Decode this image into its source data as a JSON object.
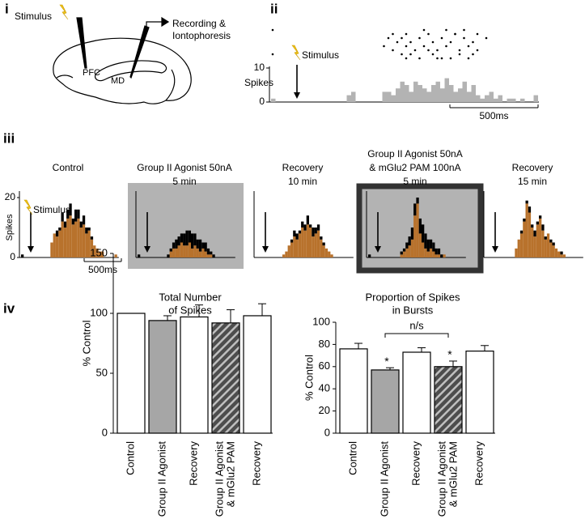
{
  "panel_labels": [
    "i",
    "ii",
    "iii",
    "iv"
  ],
  "diagram": {
    "stimulus": "Stimulus",
    "recording": [
      "Recording &",
      "Iontophoresis"
    ],
    "pfc": "PFC",
    "md": "MD"
  },
  "chart_data": [
    {
      "type": "scatter",
      "color": "#000000",
      "x": [
        0,
        0,
        26,
        27,
        28,
        29,
        30,
        30,
        31,
        32,
        33,
        34,
        35,
        36,
        37,
        38,
        39,
        40,
        41,
        42,
        43,
        44,
        45,
        46,
        27,
        29,
        31,
        33,
        36,
        38,
        40,
        42,
        44,
        46,
        48,
        39,
        41,
        43,
        30,
        34,
        37,
        45,
        25,
        35
      ],
      "y": [
        1,
        7,
        3,
        2,
        4,
        3,
        5,
        2,
        4,
        6,
        3,
        5,
        2,
        4,
        6,
        3,
        5,
        4,
        2,
        6,
        3,
        5,
        4,
        2,
        6,
        7,
        7,
        8,
        7,
        8,
        8,
        7,
        8,
        6,
        3,
        1,
        2,
        1,
        8,
        1,
        8,
        7,
        5,
        6
      ]
    },
    {
      "type": "bar",
      "ylabel": "Spikes",
      "annotation": "Stimulus",
      "scale_bar": "500ms",
      "color": "#b3b3b3",
      "ylim": [
        0,
        10
      ],
      "yticks": [
        0,
        10
      ],
      "values": [
        1,
        0,
        0,
        0,
        0,
        0,
        0,
        0,
        0,
        0,
        0,
        0,
        0,
        0,
        0,
        0,
        0,
        2,
        3,
        0,
        0,
        0,
        0,
        0,
        0,
        3,
        3,
        2,
        4,
        6,
        5,
        3,
        6,
        5,
        4,
        3,
        5,
        6,
        4,
        7,
        5,
        3,
        4,
        6,
        3,
        5,
        2,
        1,
        2,
        3,
        1,
        2,
        0,
        1,
        1,
        0,
        1,
        0,
        0,
        2
      ]
    },
    {
      "type": "stacked_bar",
      "title": [
        "Control"
      ],
      "ylabel": "Spikes",
      "annotation": "Stimulus",
      "scale_bar": "500ms",
      "ylim": [
        0,
        20
      ],
      "yticks": [
        0,
        20
      ],
      "background": "none",
      "framed": false,
      "series": [
        {
          "color": "#b8722c",
          "values": [
            0,
            0,
            0,
            0,
            0,
            0,
            0,
            0,
            0,
            0,
            0,
            5,
            8,
            7,
            9,
            12,
            10,
            13,
            14,
            11,
            12,
            13,
            10,
            11,
            8,
            9,
            6,
            4,
            3,
            2,
            2,
            0,
            0,
            0,
            0,
            1
          ]
        },
        {
          "color": "#000000",
          "values": [
            1,
            0,
            0,
            0,
            0,
            0,
            0,
            0,
            0,
            0,
            0,
            0,
            0,
            2,
            1,
            3,
            2,
            3,
            4,
            2,
            4,
            3,
            2,
            3,
            2,
            1,
            1,
            0,
            0,
            0,
            0,
            0,
            0,
            0,
            0,
            0
          ]
        }
      ]
    },
    {
      "type": "stacked_bar",
      "title": [
        "Group II Agonist 50nA",
        "5 min"
      ],
      "background": "#b3b3b3",
      "framed": false,
      "series": [
        {
          "color": "#b8722c",
          "values": [
            0,
            0,
            0,
            0,
            0,
            0,
            0,
            0,
            0,
            0,
            0,
            0,
            2,
            3,
            3,
            4,
            5,
            4,
            4,
            5,
            3,
            4,
            3,
            2,
            3,
            2,
            1,
            1,
            0,
            0,
            0,
            0,
            0,
            0,
            0,
            0
          ]
        },
        {
          "color": "#000000",
          "values": [
            1,
            0,
            0,
            0,
            0,
            0,
            0,
            0,
            0,
            0,
            0,
            1,
            1,
            2,
            3,
            3,
            3,
            4,
            5,
            4,
            5,
            4,
            3,
            4,
            2,
            3,
            2,
            1,
            1,
            0,
            0,
            0,
            0,
            0,
            0,
            0
          ]
        }
      ]
    },
    {
      "type": "stacked_bar",
      "title": [
        "Recovery",
        "10 min"
      ],
      "background": "none",
      "framed": false,
      "series": [
        {
          "color": "#b8722c",
          "values": [
            0,
            0,
            0,
            0,
            0,
            0,
            0,
            0,
            0,
            0,
            1,
            2,
            4,
            5,
            7,
            6,
            8,
            10,
            9,
            11,
            10,
            7,
            8,
            9,
            6,
            4,
            3,
            2,
            1,
            0,
            0,
            0,
            0,
            0,
            0,
            0
          ]
        },
        {
          "color": "#000000",
          "values": [
            0,
            0,
            0,
            0,
            0,
            0,
            0,
            0,
            0,
            0,
            0,
            0,
            0,
            1,
            2,
            2,
            1,
            2,
            2,
            3,
            1,
            3,
            2,
            2,
            1,
            1,
            0,
            0,
            0,
            0,
            0,
            0,
            0,
            0,
            0,
            0
          ]
        }
      ]
    },
    {
      "type": "stacked_bar",
      "title": [
        "Group II Agonist 50nA",
        "& mGlu2 PAM 100nA",
        "5 min"
      ],
      "background": "#b3b3b3",
      "framed": true,
      "series": [
        {
          "color": "#b8722c",
          "values": [
            0,
            0,
            0,
            0,
            0,
            0,
            0,
            0,
            0,
            0,
            0,
            0,
            1,
            2,
            3,
            4,
            6,
            14,
            18,
            8,
            5,
            3,
            2,
            3,
            2,
            1,
            1,
            0,
            1,
            0,
            0,
            0,
            0,
            0,
            0,
            0
          ]
        },
        {
          "color": "#000000",
          "values": [
            1,
            0,
            0,
            0,
            0,
            0,
            0,
            0,
            0,
            0,
            0,
            0,
            1,
            1,
            2,
            3,
            4,
            4,
            2,
            5,
            6,
            5,
            4,
            3,
            3,
            2,
            2,
            1,
            0,
            0,
            0,
            0,
            0,
            0,
            0,
            0
          ]
        }
      ]
    },
    {
      "type": "stacked_bar",
      "title": [
        "Recovery",
        "15 min"
      ],
      "background": "none",
      "framed": false,
      "series": [
        {
          "color": "#b8722c",
          "values": [
            0,
            0,
            0,
            0,
            0,
            0,
            0,
            0,
            0,
            0,
            0,
            3,
            6,
            8,
            12,
            18,
            15,
            10,
            7,
            11,
            13,
            9,
            6,
            8,
            5,
            4,
            3,
            2,
            1,
            1,
            0,
            0,
            0,
            0,
            0,
            0
          ]
        },
        {
          "color": "#000000",
          "values": [
            0,
            0,
            0,
            0,
            0,
            0,
            0,
            0,
            0,
            0,
            0,
            0,
            0,
            1,
            1,
            1,
            2,
            1,
            2,
            1,
            1,
            2,
            1,
            0,
            1,
            1,
            0,
            0,
            1,
            0,
            0,
            0,
            0,
            0,
            0,
            0
          ]
        }
      ]
    },
    {
      "type": "errorbar_bar",
      "title": [
        "Total Number",
        "of Spikes"
      ],
      "ylabel": "% Control",
      "categories": [
        [
          "Control"
        ],
        [
          "Group II Agonist"
        ],
        [
          "Recovery"
        ],
        [
          "Group II Agonist",
          "& mGlu2 PAM"
        ],
        [
          "Recovery"
        ]
      ],
      "values": [
        100,
        94,
        97,
        92,
        98
      ],
      "errors": [
        0,
        4,
        10,
        11,
        10
      ],
      "colors": [
        "#ffffff",
        "#a6a6a6",
        "#ffffff",
        "#4d4d4d",
        "#ffffff"
      ],
      "hatched": [
        false,
        false,
        false,
        true,
        false
      ],
      "ylim": [
        0,
        150
      ],
      "yticks": [
        0,
        50,
        100,
        150
      ]
    },
    {
      "type": "errorbar_bar",
      "title": [
        "Proportion of Spikes",
        "in Bursts"
      ],
      "ylabel": "% Control",
      "categories": [
        [
          "Control"
        ],
        [
          "Group II Agonist"
        ],
        [
          "Recovery"
        ],
        [
          "Group II Agonist",
          "& mGlu2 PAM"
        ],
        [
          "Recovery"
        ]
      ],
      "values": [
        76,
        57,
        73,
        60,
        74
      ],
      "errors": [
        5,
        2,
        4,
        5,
        5
      ],
      "colors": [
        "#ffffff",
        "#a6a6a6",
        "#ffffff",
        "#4d4d4d",
        "#ffffff"
      ],
      "hatched": [
        false,
        false,
        false,
        true,
        false
      ],
      "significance": [
        null,
        "*",
        null,
        "*",
        null
      ],
      "bracket_label": "n/s",
      "ylim": [
        0,
        100
      ],
      "yticks": [
        0,
        20,
        40,
        60,
        80,
        100
      ]
    }
  ]
}
